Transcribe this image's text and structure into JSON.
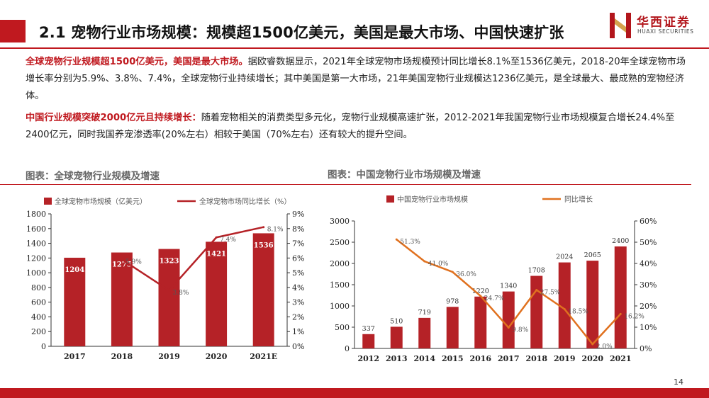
{
  "header": {
    "title": "2.1 宠物行业市场规模：规模超1500亿美元，美国是最大市场、中国快速扩张",
    "logo_cn": "华西证券",
    "logo_en": "HUAXI SECURITIES"
  },
  "paragraphs": [
    {
      "highlight": "全球宠物行业规模超1500亿美元，美国是最大市场。",
      "text": "据欧睿数据显示，2021年全球宠物市场规模预计同比增长8.1%至1536亿美元，2018-20年全球宠物市场增长率分别为5.9%、3.8%、7.4%，全球宠物行业持续增长；其中美国是第一大市场，21年美国宠物行业规模达1236亿美元，是全球最大、最成熟的宠物经济体。"
    },
    {
      "highlight": "中国行业规模突破2000亿元且持续增长：",
      "text": "随着宠物相关的消费类型多元化，宠物行业规模高速扩张，2012-2021年我国宠物行业市场规模复合增长24.4%至2400亿元，同时我国养宠渗透率(20%左右）相较于美国（70%左右）还有较大的提升空间。"
    }
  ],
  "chart_titles": {
    "global": "图表：全球宠物行业规模及增速",
    "china": "图表：中国宠物行业市场规模及增速"
  },
  "chart_data": [
    {
      "type": "bar",
      "categories": [
        "2017",
        "2018",
        "2019",
        "2020",
        "2021E"
      ],
      "series": [
        {
          "name": "全球宠物市场规模（亿美元）",
          "type": "bar",
          "axis": "left",
          "values": [
            1204,
            1275,
            1323,
            1421,
            1536
          ],
          "labels": [
            "1204",
            "1275",
            "1323",
            "1421",
            "1536"
          ]
        },
        {
          "name": "全球宠物市场同比增长（%）",
          "type": "line",
          "axis": "right",
          "values": [
            null,
            5.9,
            3.8,
            7.4,
            8.1
          ],
          "labels": [
            "",
            "5.9%",
            "3.8%",
            "7.4%",
            "8.1%"
          ]
        }
      ],
      "ylim": [
        0,
        1800
      ],
      "yticks": [
        0,
        200,
        400,
        600,
        800,
        1000,
        1200,
        1400,
        1600,
        1800
      ],
      "y2lim": [
        0,
        9
      ],
      "y2ticks": [
        "0%",
        "1%",
        "2%",
        "3%",
        "4%",
        "5%",
        "6%",
        "7%",
        "8%",
        "9%"
      ],
      "legend": "top",
      "grid": false,
      "colors": {
        "bar": "#b52227",
        "line": "#b52227"
      }
    },
    {
      "type": "bar",
      "categories": [
        "2012",
        "2013",
        "2014",
        "2015",
        "2016",
        "2017",
        "2018",
        "2019",
        "2020",
        "2021"
      ],
      "series": [
        {
          "name": "中国宠物行业市场规模",
          "type": "bar",
          "axis": "left",
          "values": [
            337,
            510,
            719,
            978,
            1220,
            1340,
            1708,
            2024,
            2065,
            2400
          ],
          "labels": [
            "337",
            "510",
            "719",
            "978",
            "1220",
            "1340",
            "1708",
            "2024",
            "2065",
            "2400"
          ]
        },
        {
          "name": "同比增长",
          "type": "line",
          "axis": "right",
          "values": [
            null,
            51.3,
            41.0,
            36.0,
            24.7,
            9.8,
            27.5,
            18.5,
            2.0,
            16.2
          ],
          "labels": [
            "",
            "51.3%",
            "41.0%",
            "36.0%",
            "24.7%",
            "9.8%",
            "27.5%",
            "18.5%",
            "2.0%",
            "16.2%"
          ]
        }
      ],
      "ylim": [
        0,
        3000
      ],
      "yticks": [
        0,
        500,
        1000,
        1500,
        2000,
        2500,
        3000
      ],
      "y2lim": [
        0,
        60
      ],
      "y2ticks": [
        "0%",
        "10%",
        "20%",
        "30%",
        "40%",
        "50%",
        "60%"
      ],
      "legend": "top",
      "grid": false,
      "colors": {
        "bar": "#b52227",
        "line": "#e0711f"
      }
    }
  ],
  "footer": {
    "page": "14"
  },
  "colors": {
    "accent": "#c0191f"
  }
}
